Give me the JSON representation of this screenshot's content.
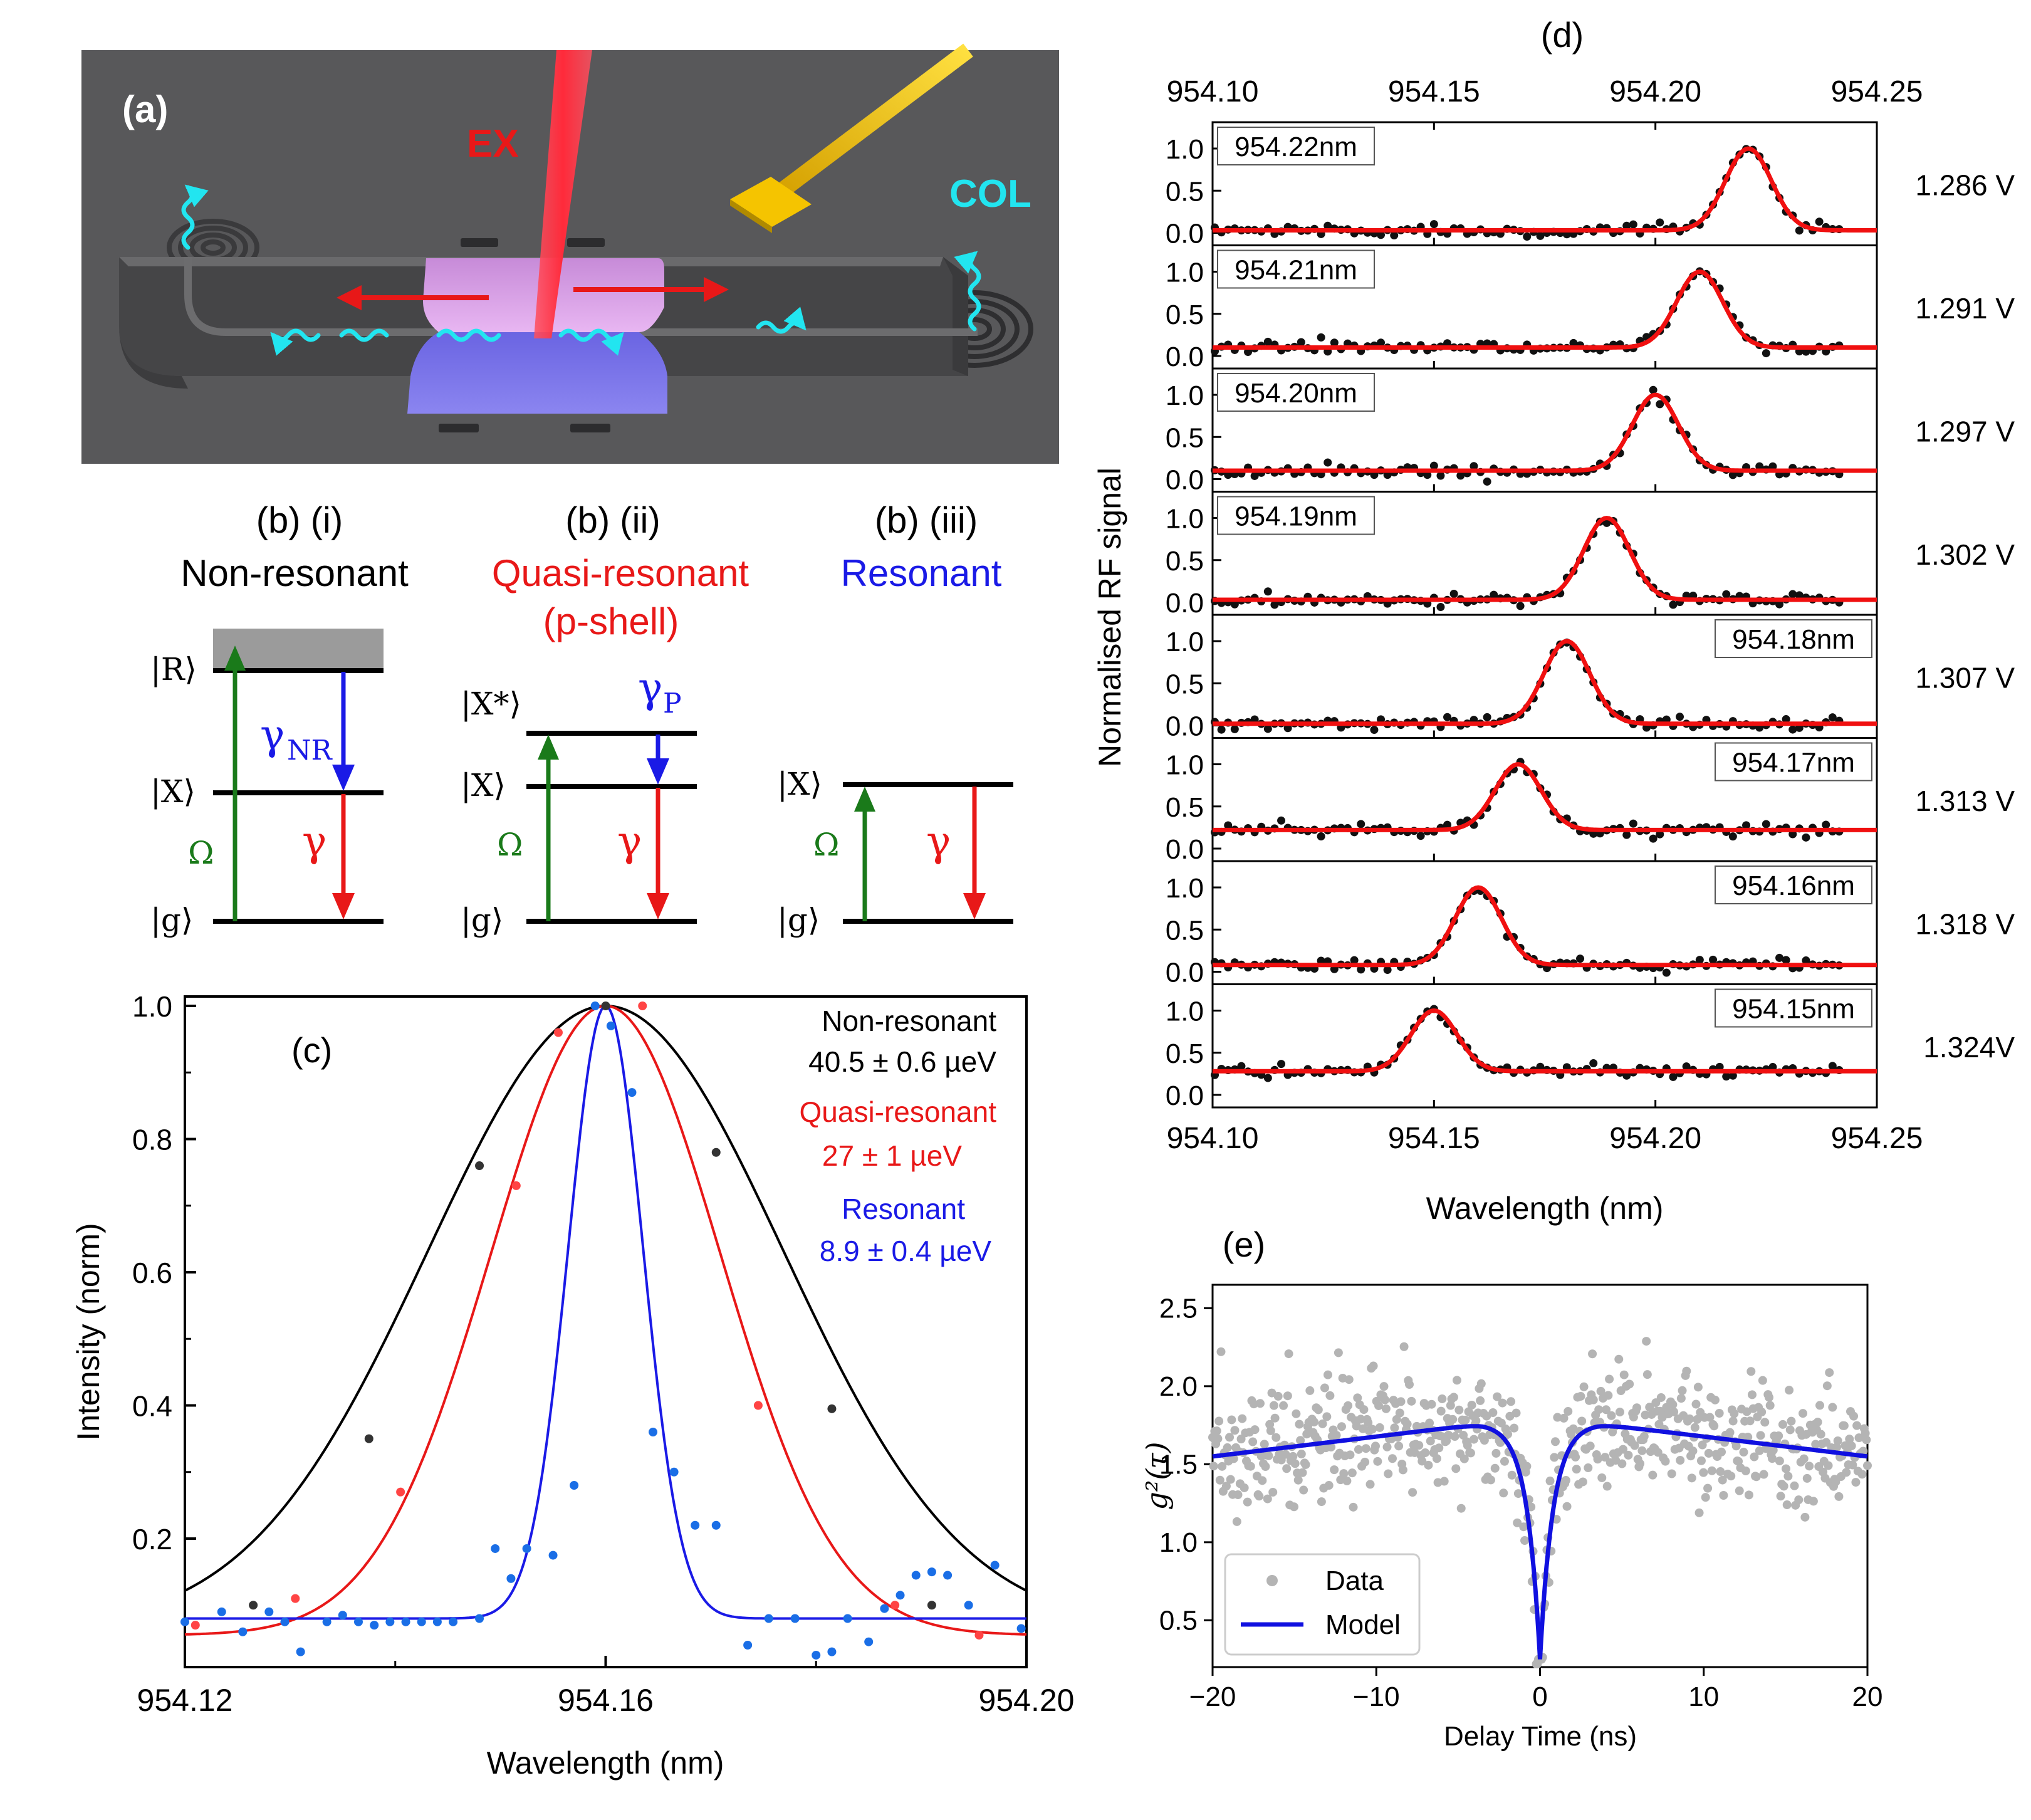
{
  "panel_a": {
    "label": "(a)",
    "ex_label": "EX",
    "col_label": "COL",
    "colors": {
      "background": "#58585a",
      "laser": "#ff3a4a",
      "emission": "#22e5f0",
      "arrow": "#e81818",
      "gold": "#f5c400",
      "pad_top": "#d9a0e6",
      "pad_bottom": "#7a73e6"
    }
  },
  "panel_b": {
    "i": {
      "header": "(b) (i)",
      "title": "Non-resonant",
      "title_color": "#000000",
      "level_R": "|R⟩",
      "level_X": "|X⟩",
      "level_g": "|g⟩",
      "rate_pump": "Ω",
      "rate_relax": "γ",
      "rate_relax_sub": "NR",
      "rate_emit": "γ"
    },
    "ii": {
      "header": "(b) (ii)",
      "title": "Quasi-resonant",
      "subtitle": "(p-shell)",
      "title_color": "#e81818",
      "level_Xstar": "|X*⟩",
      "level_X": "|X⟩",
      "level_g": "|g⟩",
      "rate_pump": "Ω",
      "rate_relax": "γ",
      "rate_relax_sub": "P",
      "rate_emit": "γ"
    },
    "iii": {
      "header": "(b) (iii)",
      "title": "Resonant",
      "title_color": "#1a1ae6",
      "level_X": "|X⟩",
      "level_g": "|g⟩",
      "rate_pump": "Ω",
      "rate_emit": "γ"
    },
    "colors": {
      "pump": "#1a7a1a",
      "relax": "#1a1ae6",
      "emit": "#e81818",
      "continuum": "#9b9b9b"
    }
  },
  "chart_data": [
    {
      "panel": "(c)",
      "type": "line",
      "xlabel": "Wavelength (nm)",
      "ylabel": "Intensity (norm)",
      "xlim": [
        954.12,
        954.2
      ],
      "ylim": [
        0.0,
        1.0
      ],
      "xticks": [
        "954.12",
        "954.16",
        "954.20"
      ],
      "yticks": [
        "0.2",
        "0.4",
        "0.6",
        "0.8",
        "1.0"
      ],
      "annotations": [
        {
          "label": "Non-resonant",
          "value": "40.5 ± 0.6 µeV",
          "color": "#000000"
        },
        {
          "label": "Quasi-resonant",
          "value": "27 ± 1 µeV",
          "color": "#e81818"
        },
        {
          "label": "Resonant",
          "value": "8.9 ± 0.4 µeV",
          "color": "#1a1ae6"
        }
      ],
      "series": [
        {
          "color": "#000000",
          "point_color": "#333333",
          "fit": {
            "center": 954.16,
            "sigma": 0.0169,
            "amp": 0.935,
            "base": 0.065
          },
          "points": [
            [
              954.1265,
              0.1
            ],
            [
              954.1375,
              0.35
            ],
            [
              954.148,
              0.76
            ],
            [
              954.16,
              1.0
            ],
            [
              954.1705,
              0.78
            ],
            [
              954.1815,
              0.395
            ],
            [
              954.191,
              0.1
            ]
          ]
        },
        {
          "color": "#e81818",
          "point_color": "#ff4444",
          "fit": {
            "center": 954.16,
            "sigma": 0.0109,
            "amp": 0.945,
            "base": 0.055
          },
          "points": [
            [
              954.121,
              0.07
            ],
            [
              954.1305,
              0.11
            ],
            [
              954.1405,
              0.27
            ],
            [
              954.1515,
              0.73
            ],
            [
              954.1555,
              0.96
            ],
            [
              954.1635,
              1.0
            ],
            [
              954.1745,
              0.4
            ],
            [
              954.1875,
              0.1
            ],
            [
              954.1955,
              0.055
            ]
          ]
        },
        {
          "color": "#1a1ae6",
          "point_color": "#1a6ee6",
          "fit": {
            "center": 954.16,
            "sigma": 0.00355,
            "amp": 0.92,
            "base": 0.08
          },
          "points": [
            [
              954.12,
              0.075
            ],
            [
              954.1235,
              0.09
            ],
            [
              954.1255,
              0.06
            ],
            [
              954.128,
              0.09
            ],
            [
              954.1295,
              0.075
            ],
            [
              954.131,
              0.03
            ],
            [
              954.1335,
              0.075
            ],
            [
              954.135,
              0.085
            ],
            [
              954.1365,
              0.075
            ],
            [
              954.138,
              0.07
            ],
            [
              954.1395,
              0.075
            ],
            [
              954.141,
              0.075
            ],
            [
              954.1425,
              0.075
            ],
            [
              954.144,
              0.075
            ],
            [
              954.1455,
              0.075
            ],
            [
              954.148,
              0.08
            ],
            [
              954.1495,
              0.185
            ],
            [
              954.151,
              0.14
            ],
            [
              954.1525,
              0.185
            ],
            [
              954.155,
              0.175
            ],
            [
              954.157,
              0.28
            ],
            [
              954.159,
              1.0
            ],
            [
              954.1605,
              0.97
            ],
            [
              954.1625,
              0.87
            ],
            [
              954.1645,
              0.36
            ],
            [
              954.1665,
              0.3
            ],
            [
              954.1685,
              0.22
            ],
            [
              954.1705,
              0.22
            ],
            [
              954.1735,
              0.04
            ],
            [
              954.1755,
              0.08
            ],
            [
              954.178,
              0.08
            ],
            [
              954.18,
              0.025
            ],
            [
              954.1815,
              0.03
            ],
            [
              954.183,
              0.08
            ],
            [
              954.185,
              0.045
            ],
            [
              954.1865,
              0.095
            ],
            [
              954.188,
              0.115
            ],
            [
              954.1895,
              0.145
            ],
            [
              954.191,
              0.15
            ],
            [
              954.1925,
              0.145
            ],
            [
              954.1945,
              0.1
            ],
            [
              954.197,
              0.16
            ],
            [
              954.1995,
              0.065
            ]
          ]
        }
      ]
    },
    {
      "panel": "(d)",
      "type": "line",
      "xlabel": "Wavelength (nm)",
      "ylabel": "Normalised RF signal",
      "xlim": [
        954.1,
        954.25
      ],
      "ylim": [
        -0.1,
        1.2
      ],
      "xticks": [
        "954.10",
        "954.15",
        "954.20",
        "954.25"
      ],
      "yticks": [
        "0.0",
        "0.5",
        "1.0"
      ],
      "sigma": 0.0052,
      "rows": [
        {
          "wavelength_label": "954.22nm",
          "voltage": "1.286 V",
          "center": 954.221,
          "base": 0.03,
          "label_side": "left"
        },
        {
          "wavelength_label": "954.21nm",
          "voltage": "1.291 V",
          "center": 954.21,
          "base": 0.1,
          "label_side": "left"
        },
        {
          "wavelength_label": "954.20nm",
          "voltage": "1.297 V",
          "center": 954.2,
          "base": 0.1,
          "label_side": "left"
        },
        {
          "wavelength_label": "954.19nm",
          "voltage": "1.302 V",
          "center": 954.189,
          "base": 0.03,
          "label_side": "left"
        },
        {
          "wavelength_label": "954.18nm",
          "voltage": "1.307 V",
          "center": 954.18,
          "base": 0.02,
          "label_side": "right"
        },
        {
          "wavelength_label": "954.17nm",
          "voltage": "1.313 V",
          "center": 954.169,
          "base": 0.22,
          "label_side": "right"
        },
        {
          "wavelength_label": "954.16nm",
          "voltage": "1.318 V",
          "center": 954.16,
          "base": 0.08,
          "label_side": "right"
        },
        {
          "wavelength_label": "954.15nm",
          "voltage": "1.324V",
          "center": 954.15,
          "base": 0.28,
          "label_side": "right"
        }
      ]
    },
    {
      "panel": "(e)",
      "type": "scatter",
      "xlabel": "Delay Time (ns)",
      "ylabel": "g²(τ)",
      "xlim": [
        -20,
        20
      ],
      "ylim": [
        0.2,
        2.65
      ],
      "xticks": [
        "−20",
        "−10",
        "0",
        "10",
        "20"
      ],
      "yticks": [
        "0.5",
        "1.0",
        "1.5",
        "2.0",
        "2.5"
      ],
      "legend": {
        "placement": "bottom-left",
        "entries": [
          "Data",
          "Model"
        ]
      },
      "series": [
        {
          "name": "Data",
          "color": "#b4b4b4",
          "points_count": 620,
          "spread": 0.19,
          "min_at_zero": 0.25
        },
        {
          "name": "Model",
          "color": "#1010e0",
          "g2_zero": 0.25,
          "peak": 1.76,
          "edge": 1.55,
          "antibunch_tau_ns": 0.8,
          "bunch_tau_ns": 30
        }
      ]
    }
  ],
  "panel_labels": {
    "d": "(d)",
    "e": "(e)"
  }
}
